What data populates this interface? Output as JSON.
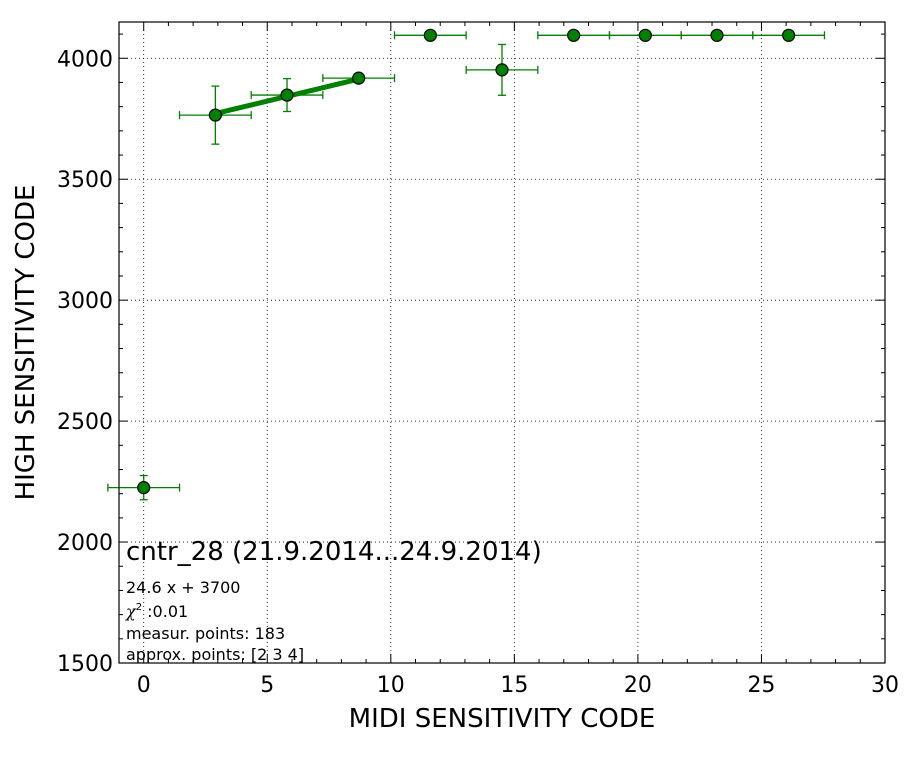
{
  "chart_data": {
    "type": "scatter",
    "xlabel": "MIDI SENSITIVITY CODE",
    "ylabel": "HIGH SENSITIVITY CODE",
    "xlim": [
      -1,
      30
    ],
    "ylim": [
      1500,
      4150
    ],
    "xticks": [
      0,
      5,
      10,
      15,
      20,
      25,
      30
    ],
    "yticks": [
      1500,
      2000,
      2500,
      3000,
      3500,
      4000
    ],
    "grid": true,
    "grid_style": "dotted",
    "marker_color": "#008000",
    "fit_line_color": "#008000",
    "points": [
      {
        "x": 0.0,
        "y": 2225,
        "xerr": 1.45,
        "yerr": 50
      },
      {
        "x": 2.9,
        "y": 3765,
        "xerr": 1.45,
        "yerr": 120
      },
      {
        "x": 5.8,
        "y": 3848,
        "xerr": 1.45,
        "yerr": 68
      },
      {
        "x": 8.7,
        "y": 3918,
        "xerr": 1.45,
        "yerr": 0
      },
      {
        "x": 11.6,
        "y": 4095,
        "xerr": 1.45,
        "yerr": 0
      },
      {
        "x": 14.5,
        "y": 3952,
        "xerr": 1.45,
        "yerr": 105
      },
      {
        "x": 17.4,
        "y": 4095,
        "xerr": 1.45,
        "yerr": 0
      },
      {
        "x": 20.3,
        "y": 4095,
        "xerr": 1.45,
        "yerr": 0
      },
      {
        "x": 23.2,
        "y": 4095,
        "xerr": 1.45,
        "yerr": 0
      },
      {
        "x": 26.1,
        "y": 4095,
        "xerr": 1.45,
        "yerr": 0
      }
    ],
    "fit": {
      "slope": 24.6,
      "intercept": 3700,
      "x_range": [
        2.9,
        8.7
      ]
    },
    "annotation": {
      "title": "cntr_28 (21.9.2014...24.9.2014)",
      "equation": "24.6 x + 3700",
      "chi2_symbol": "χ",
      "chi2_exp": "2",
      "chi2_value": " :0.01",
      "measur_points": "measur. points: 183",
      "approx_points": "approx. points: [2 3 4]"
    }
  }
}
